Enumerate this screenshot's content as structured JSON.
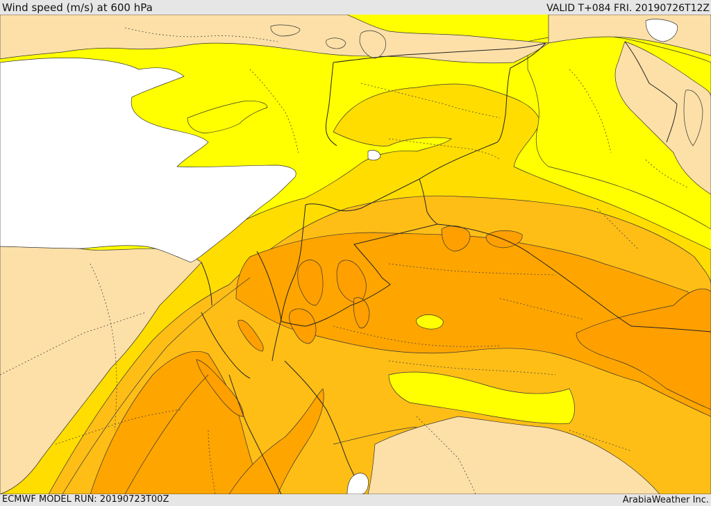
{
  "header": {
    "title": "Wind speed (m/s) at 600 hPa",
    "valid_time": "VALID T+084 FRI. 20190726T12Z"
  },
  "footer": {
    "model_run": "ECMWF MODEL RUN: 20190723T00Z",
    "credit": "ArabiaWeather Inc."
  },
  "map": {
    "fill_colors": {
      "sea": "#ffffff",
      "land_low_wind": "#fde0a8",
      "band_1": "#ffff00",
      "band_2": "#ffdd00",
      "band_3": "#ffbe16",
      "band_4": "#ff9f00",
      "outline": "#333333"
    }
  }
}
